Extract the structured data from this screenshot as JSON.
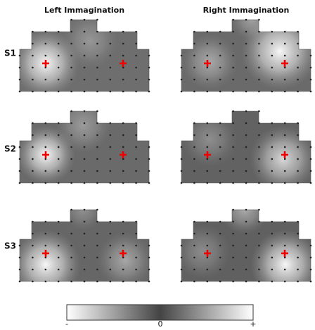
{
  "columns": [
    "Left Immagination",
    "Right Immagination"
  ],
  "rows": [
    "S1",
    "S2",
    "S3"
  ],
  "colorbar": {
    "min": "-",
    "mid": "0",
    "max": "+"
  }
}
